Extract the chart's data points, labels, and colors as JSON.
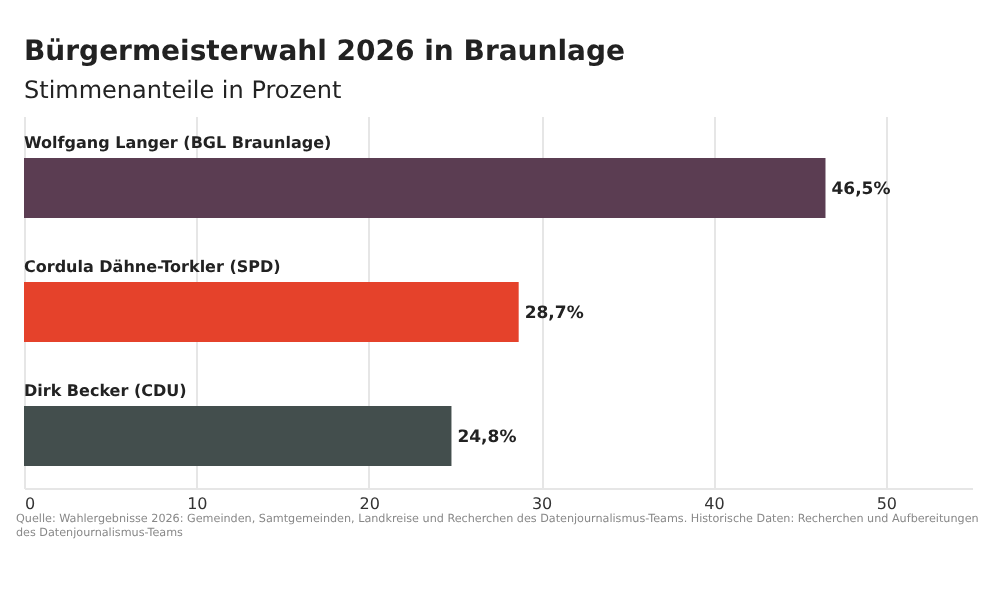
{
  "chart_data": {
    "type": "bar",
    "orientation": "horizontal",
    "title": "Bürgermeisterwahl 2026 in Braunlage",
    "subtitle": "Stimmenanteile in Prozent",
    "categories": [
      "Wolfgang Langer (BGL Braunlage)",
      "Cordula Dähne-Torkler (SPD)",
      "Dirk Becker (CDU)"
    ],
    "values": [
      46.5,
      28.7,
      24.8
    ],
    "colors": [
      "#5b3d52",
      "#e5422b",
      "#434e4d"
    ],
    "value_labels": [
      "46,5%",
      "28,7%",
      "24,8%"
    ],
    "xlim": [
      0,
      55
    ],
    "xticks": [
      0,
      10,
      20,
      30,
      40,
      50
    ],
    "grid": "x",
    "annotations": [
      "Quelle: Wahlergebnisse 2026: Gemeinden, Samtgemeinden, Landkreise und Recherchen des Datenjournalismus-Teams. Historische Daten: Recherchen und Aufbereitungen des Datenjournalismus-Teams"
    ]
  }
}
